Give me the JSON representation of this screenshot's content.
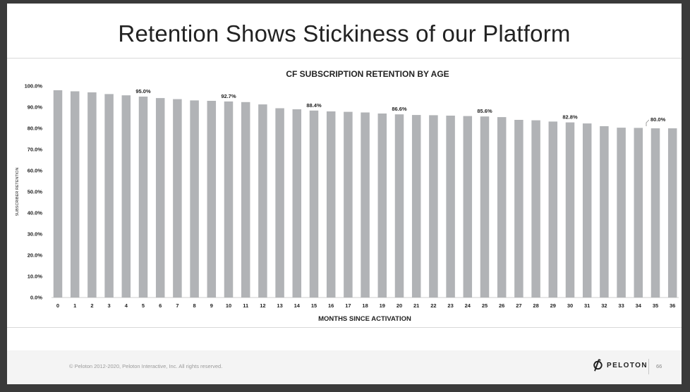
{
  "slide": {
    "title": "Retention Shows Stickiness of our Platform",
    "footer": {
      "copyright": "© Peloton 2012-2020, Peloton Interactive, Inc. All rights reserved.",
      "brand": "PELOTON",
      "page_number": "66"
    }
  },
  "colors": {
    "bar": "#b1b3b6",
    "text": "#222222",
    "axis": "#cfcfcf"
  },
  "icons": {
    "brand_logo": "peloton-logo-icon"
  },
  "chart_data": {
    "type": "bar",
    "title": "CF SUBSCRIPTION RETENTION BY AGE",
    "xlabel": "MONTHS SINCE ACTIVATION",
    "ylabel": "SUBSCRIBER RETENTION",
    "ylim": [
      0,
      100
    ],
    "yticks": [
      "0.0%",
      "10.0%",
      "20.0%",
      "30.0%",
      "40.0%",
      "50.0%",
      "60.0%",
      "70.0%",
      "80.0%",
      "90.0%",
      "100.0%"
    ],
    "categories": [
      "0",
      "1",
      "2",
      "3",
      "4",
      "5",
      "6",
      "7",
      "8",
      "9",
      "10",
      "11",
      "12",
      "13",
      "14",
      "15",
      "16",
      "17",
      "18",
      "19",
      "20",
      "21",
      "22",
      "23",
      "24",
      "25",
      "26",
      "27",
      "28",
      "29",
      "30",
      "31",
      "32",
      "33",
      "34",
      "35",
      "36"
    ],
    "values": [
      98.0,
      97.5,
      97.0,
      96.2,
      95.6,
      95.0,
      94.3,
      93.8,
      93.2,
      93.0,
      92.7,
      92.4,
      91.3,
      89.5,
      89.0,
      88.4,
      88.0,
      87.8,
      87.5,
      87.0,
      86.6,
      86.3,
      86.2,
      86.0,
      85.8,
      85.6,
      85.3,
      84.0,
      83.8,
      83.2,
      82.8,
      82.3,
      81.0,
      80.3,
      80.2,
      80.0,
      80.0
    ],
    "annotations": [
      {
        "index": 5,
        "label": "95.0%"
      },
      {
        "index": 10,
        "label": "92.7%"
      },
      {
        "index": 15,
        "label": "88.4%"
      },
      {
        "index": 20,
        "label": "86.6%"
      },
      {
        "index": 25,
        "label": "85.6%"
      },
      {
        "index": 30,
        "label": "82.8%"
      },
      {
        "index": 35,
        "label": "80.0%",
        "leader": true
      }
    ],
    "grid": false,
    "legend": "none"
  }
}
